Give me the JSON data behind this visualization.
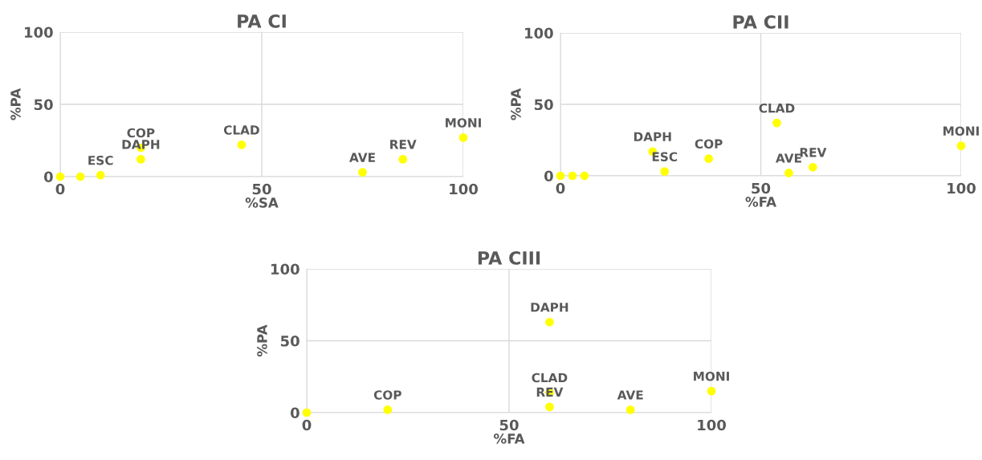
{
  "chart_data": [
    {
      "type": "scatter",
      "title": "PA CI",
      "xlabel": "%SA",
      "ylabel": "%PA",
      "xlim": [
        0,
        100
      ],
      "ylim": [
        0,
        100
      ],
      "xticks": [
        0,
        50,
        100
      ],
      "yticks": [
        0,
        50,
        100
      ],
      "grid": true,
      "marker": "circle",
      "series": [
        {
          "color": "#ffff00",
          "x": [
            0,
            5,
            10,
            20,
            20,
            45,
            75,
            85,
            100
          ],
          "values": [
            0,
            0,
            1,
            20,
            12,
            22,
            3,
            12,
            27
          ]
        }
      ],
      "annotations": [
        {
          "text": "ESC",
          "x": 10,
          "y": 1
        },
        {
          "text": "COP",
          "x": 20,
          "y": 20
        },
        {
          "text": "DAPH",
          "x": 20,
          "y": 12
        },
        {
          "text": "CLAD",
          "x": 45,
          "y": 22
        },
        {
          "text": "AVE",
          "x": 75,
          "y": 3
        },
        {
          "text": "REV",
          "x": 85,
          "y": 12
        },
        {
          "text": "MONI",
          "x": 100,
          "y": 27
        }
      ]
    },
    {
      "type": "scatter",
      "title": "PA CII",
      "xlabel": "%FA",
      "ylabel": "%PA",
      "xlim": [
        0,
        100
      ],
      "ylim": [
        0,
        100
      ],
      "xticks": [
        0,
        50,
        100
      ],
      "yticks": [
        0,
        50,
        100
      ],
      "grid": true,
      "marker": "circle",
      "series": [
        {
          "color": "#ffff00",
          "x": [
            0,
            3,
            6,
            23,
            26,
            37,
            54,
            57,
            63,
            100
          ],
          "values": [
            0,
            0,
            0,
            17,
            3,
            12,
            37,
            2,
            6,
            21
          ]
        }
      ],
      "annotations": [
        {
          "text": "DAPH",
          "x": 23,
          "y": 17
        },
        {
          "text": "ESC",
          "x": 26,
          "y": 3
        },
        {
          "text": "COP",
          "x": 37,
          "y": 12
        },
        {
          "text": "CLAD",
          "x": 54,
          "y": 37
        },
        {
          "text": "AVE",
          "x": 57,
          "y": 2
        },
        {
          "text": "REV",
          "x": 63,
          "y": 6
        },
        {
          "text": "MONI",
          "x": 100,
          "y": 21
        }
      ]
    },
    {
      "type": "scatter",
      "title": "PA CIII",
      "xlabel": "%FA",
      "ylabel": "%PA",
      "xlim": [
        0,
        100
      ],
      "ylim": [
        0,
        100
      ],
      "xticks": [
        0,
        50,
        100
      ],
      "yticks": [
        0,
        50,
        100
      ],
      "grid": true,
      "marker": "circle",
      "series": [
        {
          "color": "#ffff00",
          "x": [
            0,
            20,
            60,
            60,
            60,
            80,
            100
          ],
          "values": [
            0,
            2,
            63,
            14,
            4,
            2,
            15
          ]
        }
      ],
      "annotations": [
        {
          "text": "COP",
          "x": 20,
          "y": 2
        },
        {
          "text": "DAPH",
          "x": 60,
          "y": 63
        },
        {
          "text": "CLAD",
          "x": 60,
          "y": 14
        },
        {
          "text": "REV",
          "x": 60,
          "y": 4
        },
        {
          "text": "AVE",
          "x": 80,
          "y": 2
        },
        {
          "text": "MONI",
          "x": 100,
          "y": 15
        }
      ]
    }
  ]
}
